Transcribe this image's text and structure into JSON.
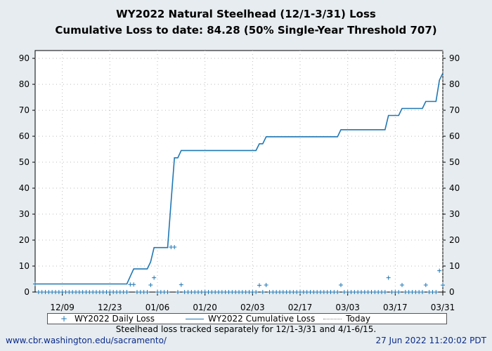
{
  "chart_data": {
    "type": "line",
    "title": "WY2022 Natural Steelhead (12/1-3/31) Loss",
    "subtitle": "Cumulative Loss to date: 84.28 (50% Single-Year Threshold 707)",
    "x_start": "12/01",
    "x_end": "03/31",
    "xticks": [
      "12/09",
      "12/23",
      "01/06",
      "01/20",
      "02/03",
      "02/17",
      "03/03",
      "03/17",
      "03/31"
    ],
    "yticks": [
      0,
      10,
      20,
      30,
      40,
      50,
      60,
      70,
      80,
      90
    ],
    "ylim": [
      0,
      93
    ],
    "grid": true,
    "series": [
      {
        "name": "WY2022 Daily Loss",
        "marker": "+",
        "color": "#1f77b4",
        "nonzero_days": {
          "12/01": 3.1,
          "12/29": 2.9,
          "12/30": 2.9,
          "01/04": 2.7,
          "01/05": 5.5,
          "01/10": 17.3,
          "01/11": 17.3,
          "01/13": 2.8,
          "02/05": 2.6,
          "02/07": 2.7,
          "03/01": 2.7,
          "03/15": 5.5,
          "03/19": 2.7,
          "03/26": 2.7,
          "03/30": 8.2,
          "03/31": 2.68
        },
        "other_days_value": 0
      },
      {
        "name": "WY2022 Cumulative Loss",
        "color": "#1f77b4",
        "final": 84.28
      },
      {
        "name": "Today",
        "style": "dotted",
        "color": "#999999"
      }
    ]
  },
  "footer": {
    "note": "Steelhead loss tracked separately for 12/1-3/31 and 4/1-6/15.",
    "url": "www.cbr.washington.edu/sacramento/",
    "timestamp": "27 Jun 2022 11:20:02 PDT"
  }
}
